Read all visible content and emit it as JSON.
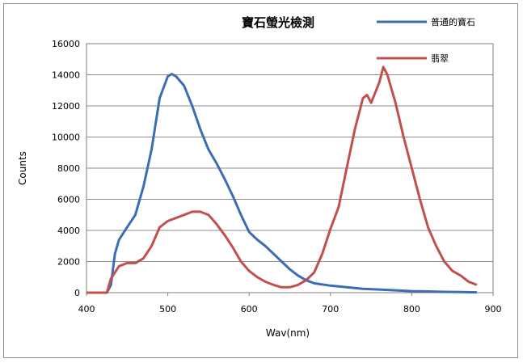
{
  "chart_data": {
    "type": "line",
    "title": "寶石螢光檢測",
    "xlabel": "Wav(nm)",
    "ylabel": "Counts",
    "xlim": [
      400,
      900
    ],
    "ylim": [
      0,
      16000
    ],
    "xticks": [
      "400",
      "500",
      "600",
      "700",
      "800",
      "900"
    ],
    "yticks": [
      "0",
      "2000",
      "4000",
      "6000",
      "8000",
      "10000",
      "12000",
      "14000",
      "16000"
    ],
    "grid": "horizontal",
    "legend_position": "top-right",
    "series": [
      {
        "name": "普通的寶石",
        "color": "#3c6cb4",
        "points": [
          [
            400,
            0
          ],
          [
            425,
            0
          ],
          [
            430,
            500
          ],
          [
            435,
            2500
          ],
          [
            440,
            3400
          ],
          [
            450,
            4200
          ],
          [
            460,
            5000
          ],
          [
            470,
            6800
          ],
          [
            480,
            9200
          ],
          [
            490,
            12500
          ],
          [
            500,
            13900
          ],
          [
            505,
            14050
          ],
          [
            510,
            13900
          ],
          [
            520,
            13300
          ],
          [
            530,
            12000
          ],
          [
            540,
            10500
          ],
          [
            550,
            9200
          ],
          [
            560,
            8300
          ],
          [
            570,
            7300
          ],
          [
            580,
            6200
          ],
          [
            590,
            5000
          ],
          [
            600,
            3900
          ],
          [
            610,
            3400
          ],
          [
            620,
            3000
          ],
          [
            630,
            2500
          ],
          [
            640,
            2000
          ],
          [
            650,
            1500
          ],
          [
            660,
            1100
          ],
          [
            670,
            800
          ],
          [
            680,
            600
          ],
          [
            700,
            450
          ],
          [
            720,
            350
          ],
          [
            740,
            250
          ],
          [
            760,
            200
          ],
          [
            780,
            150
          ],
          [
            800,
            100
          ],
          [
            820,
            80
          ],
          [
            840,
            50
          ],
          [
            860,
            40
          ],
          [
            880,
            20
          ]
        ]
      },
      {
        "name": "翡翠",
        "color": "#c0504d",
        "points": [
          [
            400,
            0
          ],
          [
            425,
            0
          ],
          [
            430,
            900
          ],
          [
            440,
            1700
          ],
          [
            450,
            1900
          ],
          [
            460,
            1900
          ],
          [
            470,
            2200
          ],
          [
            480,
            3000
          ],
          [
            490,
            4200
          ],
          [
            500,
            4600
          ],
          [
            510,
            4800
          ],
          [
            520,
            5000
          ],
          [
            530,
            5200
          ],
          [
            540,
            5200
          ],
          [
            550,
            5000
          ],
          [
            560,
            4400
          ],
          [
            570,
            3700
          ],
          [
            580,
            2900
          ],
          [
            590,
            2000
          ],
          [
            600,
            1400
          ],
          [
            610,
            1000
          ],
          [
            620,
            700
          ],
          [
            630,
            500
          ],
          [
            640,
            350
          ],
          [
            650,
            350
          ],
          [
            660,
            500
          ],
          [
            670,
            800
          ],
          [
            680,
            1300
          ],
          [
            690,
            2500
          ],
          [
            700,
            4100
          ],
          [
            710,
            5500
          ],
          [
            720,
            8000
          ],
          [
            730,
            10500
          ],
          [
            740,
            12500
          ],
          [
            745,
            12700
          ],
          [
            750,
            12200
          ],
          [
            760,
            13500
          ],
          [
            765,
            14500
          ],
          [
            770,
            14000
          ],
          [
            780,
            12200
          ],
          [
            790,
            10000
          ],
          [
            800,
            8000
          ],
          [
            810,
            6000
          ],
          [
            820,
            4200
          ],
          [
            830,
            3000
          ],
          [
            840,
            2000
          ],
          [
            850,
            1400
          ],
          [
            860,
            1100
          ],
          [
            870,
            700
          ],
          [
            880,
            500
          ]
        ]
      }
    ]
  }
}
